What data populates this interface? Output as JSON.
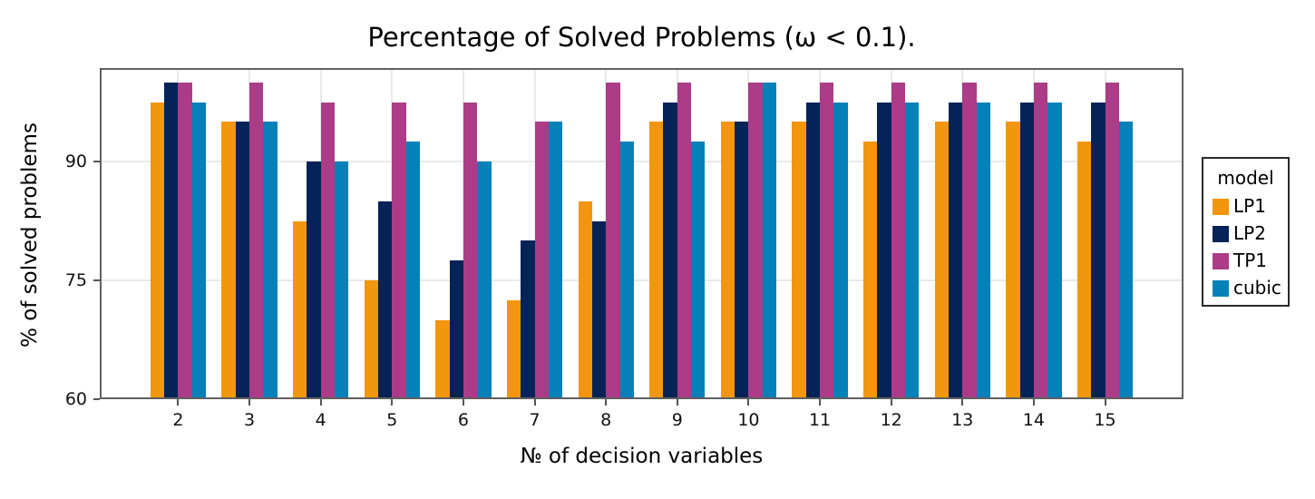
{
  "figure": {
    "title": "Percentage of Solved Problems (ω < 0.1).",
    "xlabel": "№ of decision variables",
    "ylabel": "% of solved problems"
  },
  "legend": {
    "title": "model",
    "entries": [
      {
        "label": "LP1",
        "color": "#F2960D"
      },
      {
        "label": "LP2",
        "color": "#062358"
      },
      {
        "label": "TP1",
        "color": "#AC3C87"
      },
      {
        "label": "cubic",
        "color": "#0680B8"
      }
    ]
  },
  "chart_data": {
    "type": "bar",
    "title": "Percentage of Solved Problems (ω < 0.1).",
    "xlabel": "№ of decision variables",
    "ylabel": "% of solved problems",
    "categories": [
      2,
      3,
      4,
      5,
      6,
      7,
      8,
      9,
      10,
      11,
      12,
      13,
      14,
      15
    ],
    "series": [
      {
        "name": "LP1",
        "color": "#F2960D",
        "values": [
          97.5,
          95,
          82.5,
          75,
          70,
          72.5,
          85,
          95,
          95,
          95,
          92.5,
          95,
          95,
          92.5
        ]
      },
      {
        "name": "LP2",
        "color": "#062358",
        "values": [
          100,
          95,
          90,
          85,
          77.5,
          80,
          82.5,
          97.5,
          95,
          97.5,
          97.5,
          97.5,
          97.5,
          97.5
        ]
      },
      {
        "name": "TP1",
        "color": "#AC3C87",
        "values": [
          100,
          100,
          97.5,
          97.5,
          97.5,
          95,
          100,
          100,
          100,
          100,
          100,
          100,
          100,
          100
        ]
      },
      {
        "name": "cubic",
        "color": "#0680B8",
        "values": [
          97.5,
          95,
          90,
          92.5,
          90,
          95,
          92.5,
          92.5,
          100,
          97.5,
          97.5,
          97.5,
          97.5,
          95
        ]
      }
    ],
    "xlim": [
      0.9,
      16.1
    ],
    "ylim": [
      60,
      101.8
    ],
    "yticks": [
      60,
      75,
      90
    ],
    "xticks": [
      2,
      3,
      4,
      5,
      6,
      7,
      8,
      9,
      10,
      11,
      12,
      13,
      14,
      15
    ],
    "grid": true,
    "group_width_units": 0.78,
    "legend_position": "right",
    "legend_title": "model"
  }
}
